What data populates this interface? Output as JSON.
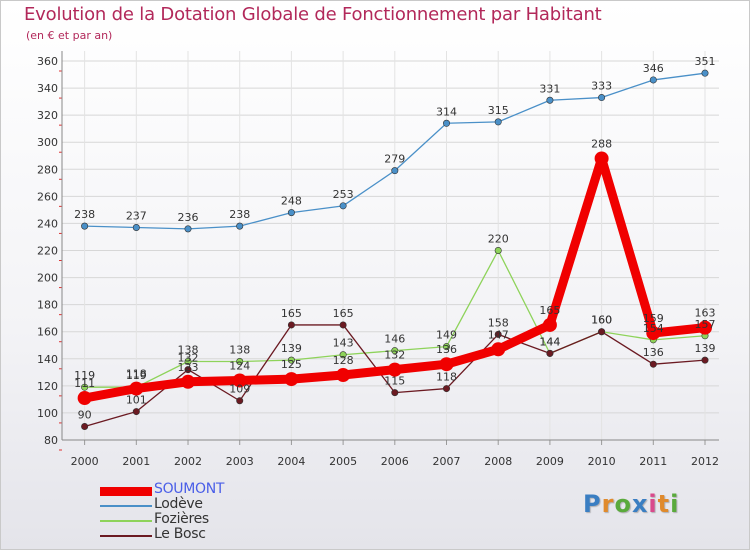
{
  "title": "Evolution de la Dotation Globale de Fonctionnement par Habitant",
  "subtitle": "(en € et par an)",
  "logo_text": "Proxiti",
  "logo_colors": [
    "#3a7ec2",
    "#e08a2c",
    "#5aaa3c",
    "#3a7ec2",
    "#d94a8c",
    "#e08a2c",
    "#5aaa3c"
  ],
  "chart_data": {
    "type": "line",
    "x": [
      "2000",
      "2001",
      "2002",
      "2003",
      "2004",
      "2005",
      "2006",
      "2007",
      "2008",
      "2009",
      "2010",
      "2011",
      "2012"
    ],
    "ylim": [
      80,
      360
    ],
    "yticks": [
      80,
      100,
      120,
      140,
      160,
      180,
      200,
      220,
      240,
      260,
      280,
      300,
      320,
      340,
      360
    ],
    "grid": true,
    "legend_position": "bottom-left",
    "series": [
      {
        "name": "Lodève",
        "color": "#4a90c8",
        "values": [
          238,
          237,
          236,
          238,
          248,
          253,
          279,
          314,
          315,
          331,
          333,
          346,
          351
        ]
      },
      {
        "name": "Fozières",
        "color": "#8ed35a",
        "values": [
          119,
          119,
          138,
          138,
          139,
          143,
          146,
          149,
          220,
          144,
          160,
          154,
          157
        ]
      },
      {
        "name": "Le Bosc",
        "color": "#6b1a22",
        "values": [
          90,
          101,
          132,
          109,
          165,
          165,
          115,
          118,
          158,
          144,
          160,
          136,
          139
        ]
      },
      {
        "name": "SOUMONT",
        "color": "#f00000",
        "values": [
          111,
          118,
          123,
          124,
          125,
          128,
          132,
          136,
          147,
          165,
          288,
          159,
          163
        ]
      }
    ]
  },
  "legend_order": [
    3,
    0,
    1,
    2
  ]
}
